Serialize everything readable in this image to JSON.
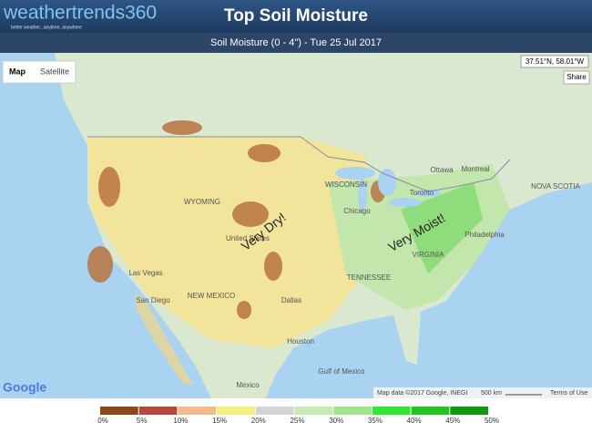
{
  "header": {
    "logo": "weathertrends360",
    "tagline": "better weather...anytime, anywhere",
    "title": "Top Soil Moisture",
    "subtitle": "Soil Moisture (0 - 4\") - Tue 25 Jul 2017"
  },
  "map": {
    "controls": [
      "Map",
      "Satellite"
    ],
    "coordinates": "37.51°N, 58.01°W",
    "share": "Share",
    "annotations": [
      "Very Dry!",
      "Very Moist!"
    ],
    "places": [
      "United States",
      "Mexico",
      "Chicago",
      "Toronto",
      "Ottawa",
      "Montreal",
      "Philadelphia",
      "Dallas",
      "Houston",
      "Las Vegas",
      "San Diego",
      "Gulf of Mexico",
      "WISCONSIN",
      "WYOMING",
      "NEW MEXICO",
      "TENNESSEE",
      "NOVA SCOTIA",
      "VIRGINIA"
    ],
    "attribution": {
      "logo": "Google",
      "data": "Map data ©2017 Google, INEGI",
      "scale": "500 km",
      "terms": "Terms of Use"
    }
  },
  "legend": {
    "labels": [
      "0%",
      "5%",
      "10%",
      "15%",
      "20%",
      "25%",
      "30%",
      "35%",
      "40%",
      "45%",
      "50%"
    ],
    "colors": [
      "#8b4a1a",
      "#b5483a",
      "#f4b98c",
      "#f5ef7e",
      "#d4d4d4",
      "#c6eab0",
      "#9ee58c",
      "#33e633",
      "#22c422",
      "#119911"
    ]
  }
}
